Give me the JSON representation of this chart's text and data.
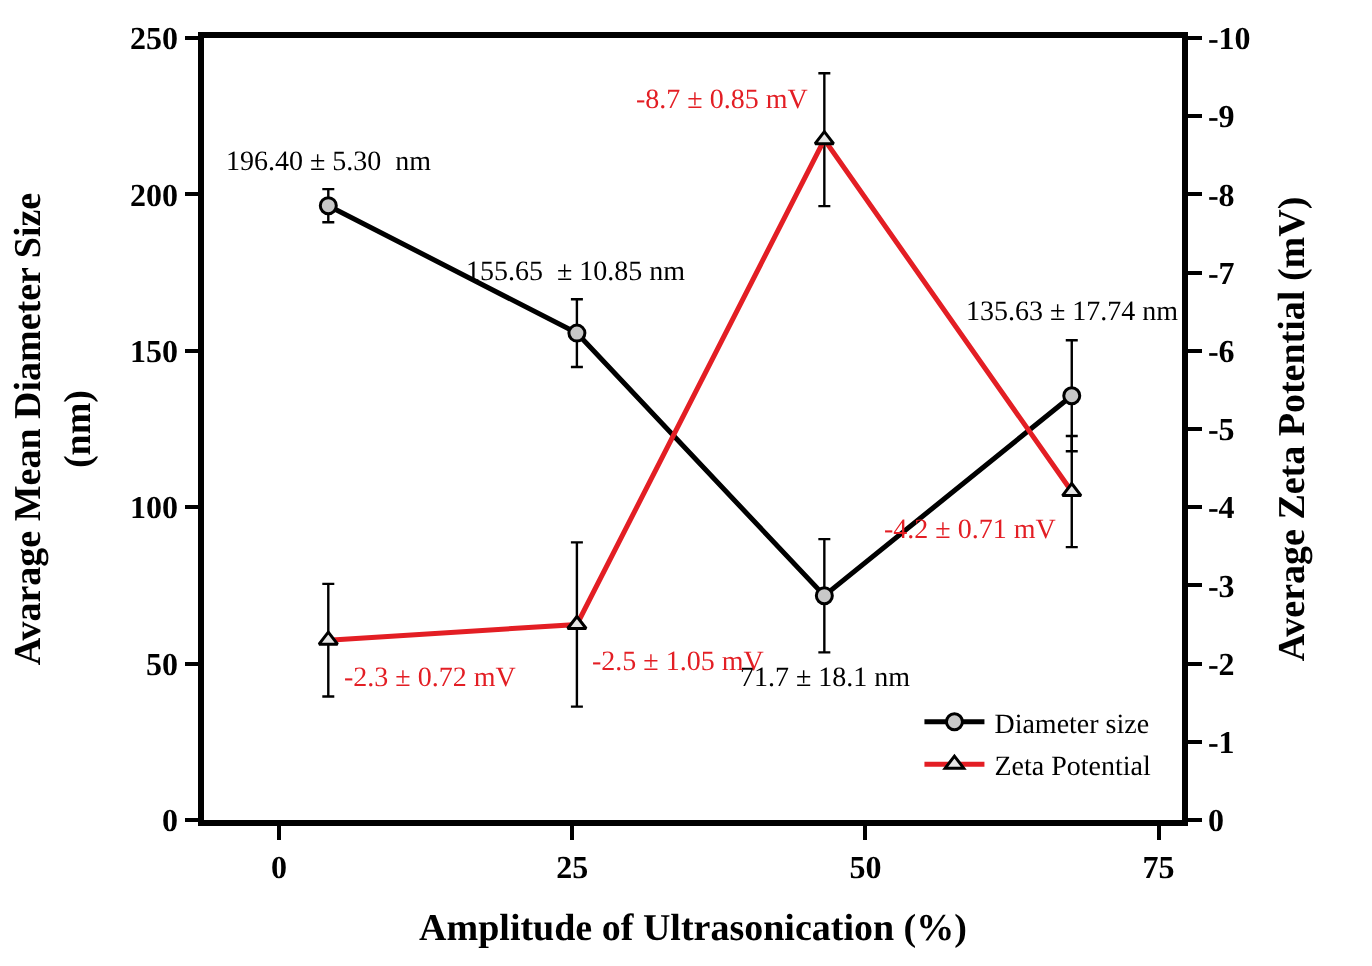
{
  "chart_data": {
    "type": "line",
    "xlabel": "Amplitude of Ultrasonication (%)",
    "ylabel": "Avarage Mean Diameter Size\n(nm)",
    "y2label": "Average Zeta Potential (mV)",
    "x": [
      4.2,
      25.4,
      46.5,
      67.6
    ],
    "xlim": [
      -6.4,
      77
    ],
    "xticks": [
      0,
      25,
      50,
      75
    ],
    "ylim": [
      0,
      250
    ],
    "yticks": [
      0,
      50,
      100,
      150,
      200,
      250
    ],
    "y2lim": [
      0,
      -10
    ],
    "y2ticks": [
      0,
      -1,
      -2,
      -3,
      -4,
      -5,
      -6,
      -7,
      -8,
      -9,
      -10
    ],
    "legend": "bottom right",
    "series": [
      {
        "name": "Diameter size",
        "color": "#000000",
        "marker": "circle",
        "values": [
          196.4,
          155.65,
          71.7,
          135.63
        ],
        "errors": [
          5.3,
          10.85,
          18.1,
          17.74
        ],
        "value_labels": [
          "196.40 ± 5.30  nm",
          "155.65  ± 10.85 nm",
          "71.7 ± 18.1 nm",
          "135.63 ± 17.74 nm"
        ]
      },
      {
        "name": "Zeta Potential",
        "color": "#e31e24",
        "marker": "triangle",
        "axis": "y2",
        "values": [
          -2.3,
          -2.5,
          -8.7,
          -4.2
        ],
        "errors": [
          0.72,
          1.05,
          0.85,
          0.71
        ],
        "value_labels": [
          "-2.3 ± 0.72 mV",
          "-2.5 ± 1.05 mV",
          "-8.7 ± 0.85 mV",
          "-4.2 ± 0.71 mV"
        ]
      }
    ]
  }
}
